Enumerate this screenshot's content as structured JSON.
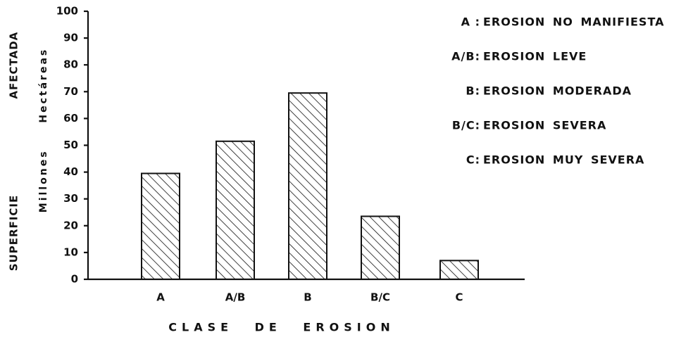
{
  "chart_data": {
    "type": "bar",
    "xlabel": "CLASE DE EROSION",
    "ylabel": "SUPERFICIE AFECTADA",
    "ylabel_units": "Millones Hectáreas",
    "categories": [
      "A",
      "A/B",
      "B",
      "B/C",
      "C"
    ],
    "values": [
      39.5,
      51.5,
      69.5,
      23.5,
      7
    ],
    "color": "#111111",
    "hatch": true,
    "ylim": [
      0,
      100
    ],
    "yticks": [
      0,
      10,
      20,
      30,
      40,
      50,
      60,
      70,
      80,
      90,
      100
    ],
    "legend": [
      {
        "code": "A :",
        "description": "EROSION NO MANIFIESTA"
      },
      {
        "code": "A/B:",
        "description": "EROSION LEVE"
      },
      {
        "code": "B:",
        "description": "EROSION MODERADA"
      },
      {
        "code": "B/C:",
        "description": "EROSION SEVERA"
      },
      {
        "code": "C:",
        "description": "EROSION MUY SEVERA"
      }
    ]
  }
}
